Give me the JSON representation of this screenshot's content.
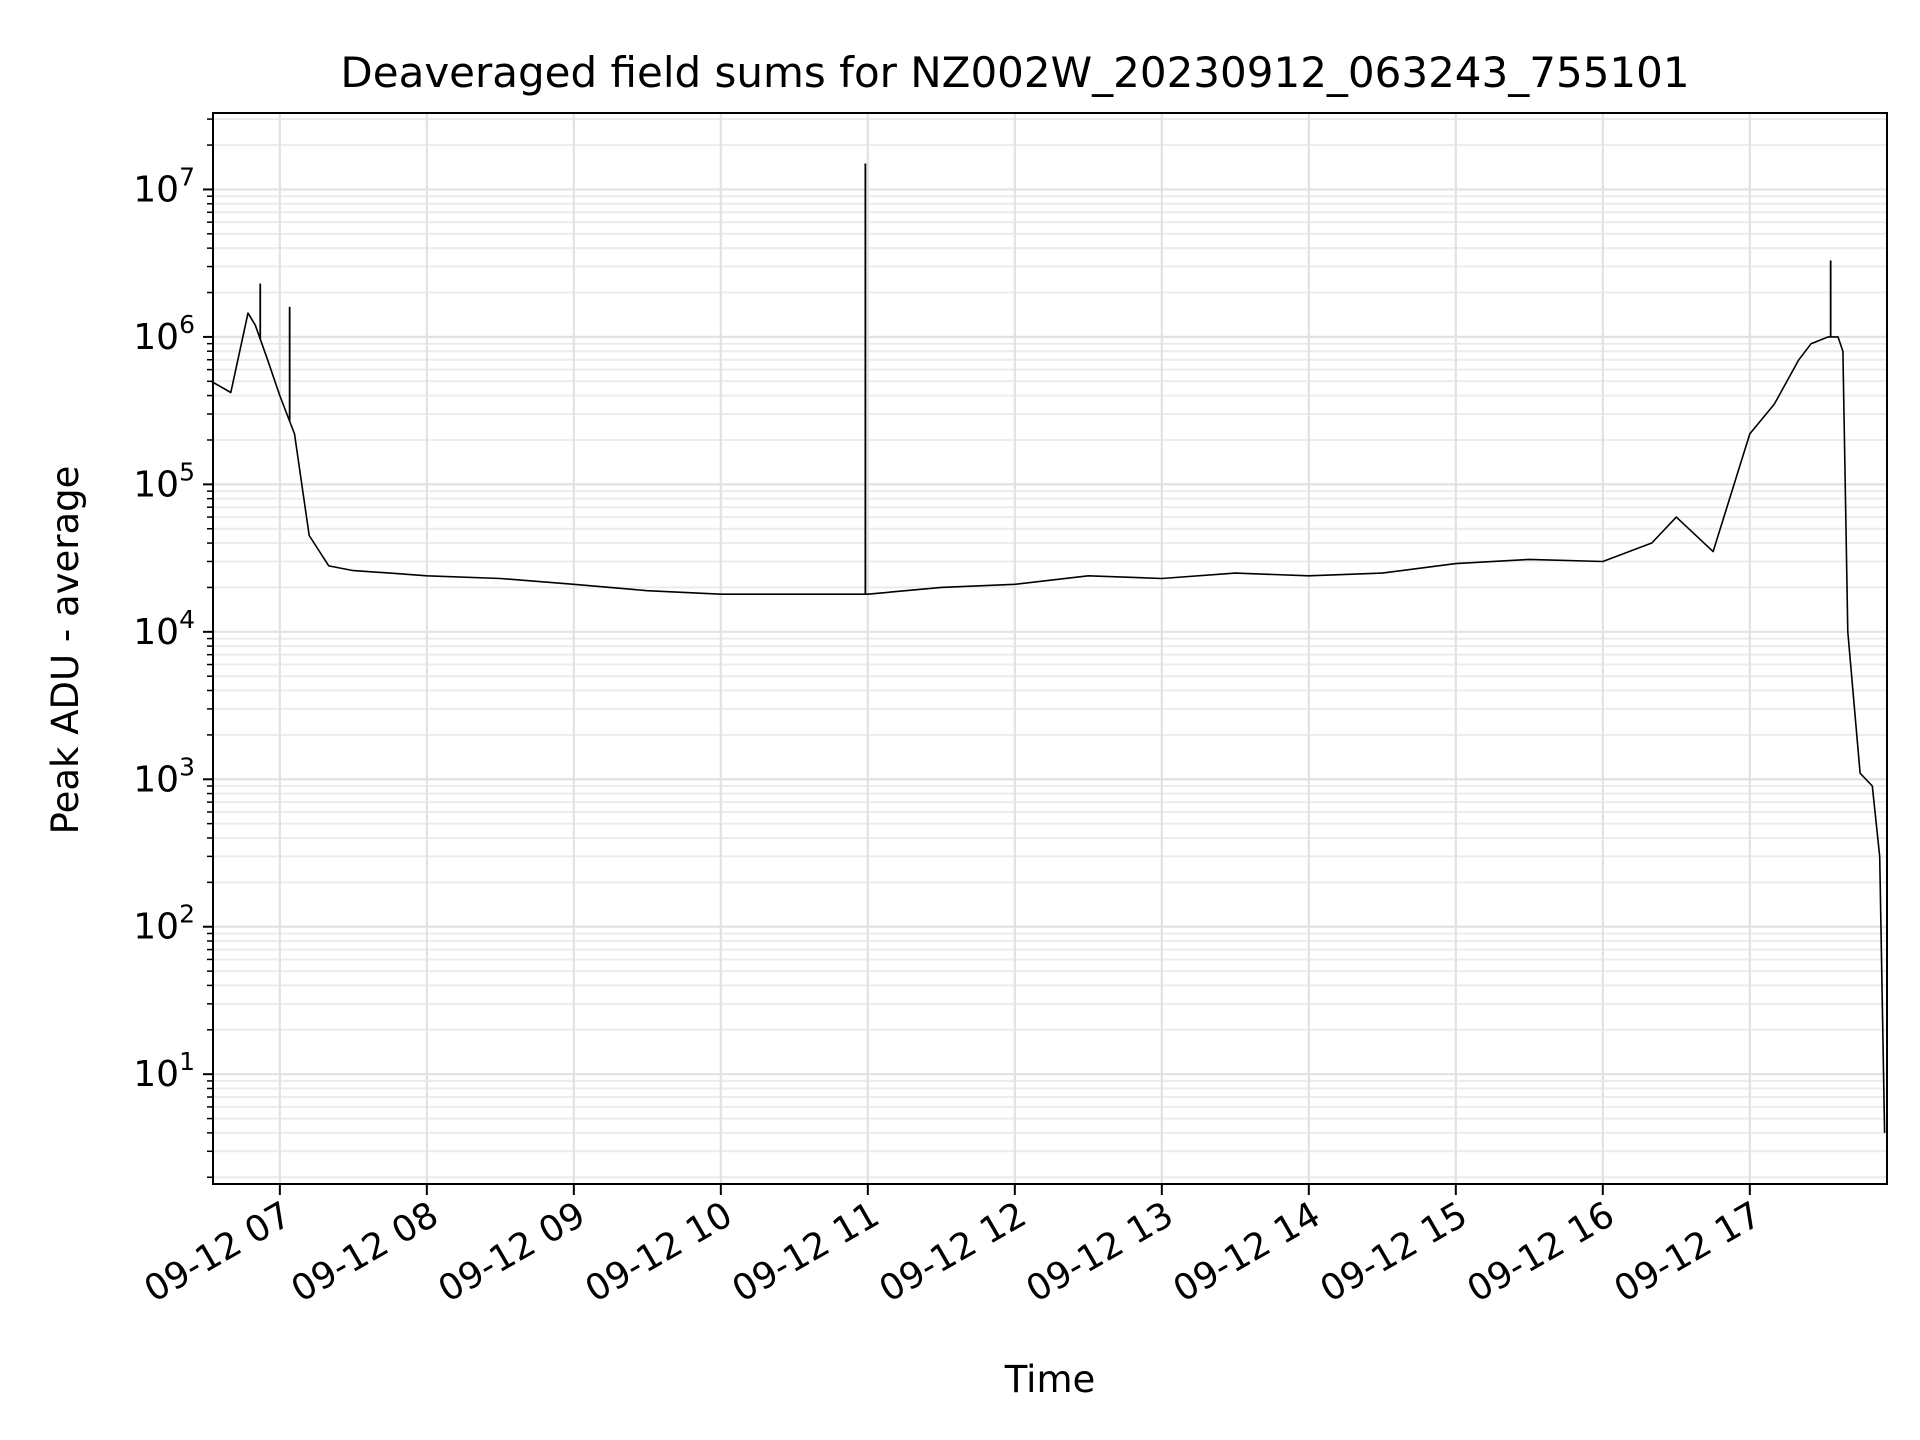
{
  "chart_data": {
    "type": "line",
    "title": "Deaveraged field sums for NZ002W_20230912_063243_755101",
    "xlabel": "Time",
    "ylabel": "Peak ADU - average",
    "y_scale": "log",
    "xlim": [
      "09-12 06:32:43",
      "09-12 17:56"
    ],
    "ylim": [
      1.8,
      33000000
    ],
    "grid": true,
    "color": "#000000",
    "x_ticks": [
      "09-12 07",
      "09-12 08",
      "09-12 09",
      "09-12 10",
      "09-12 11",
      "09-12 12",
      "09-12 13",
      "09-12 14",
      "09-12 15",
      "09-12 16",
      "09-12 17"
    ],
    "y_ticks": [
      {
        "base": "10",
        "exp": "1"
      },
      {
        "base": "10",
        "exp": "2"
      },
      {
        "base": "10",
        "exp": "3"
      },
      {
        "base": "10",
        "exp": "4"
      },
      {
        "base": "10",
        "exp": "5"
      },
      {
        "base": "10",
        "exp": "6"
      },
      {
        "base": "10",
        "exp": "7"
      }
    ],
    "series": [
      {
        "x": [
          "09-12 06:32",
          "09-12 06:40",
          "09-12 06:47",
          "09-12 06:50",
          "09-12 06:55",
          "09-12 07:00",
          "09-12 07:06",
          "09-12 07:12",
          "09-12 07:20",
          "09-12 07:30",
          "09-12 07:45",
          "09-12 08:00",
          "09-12 08:30",
          "09-12 09:00",
          "09-12 09:30",
          "09-12 10:00",
          "09-12 10:30",
          "09-12 11:00",
          "09-12 11:30",
          "09-12 12:00",
          "09-12 12:30",
          "09-12 13:00",
          "09-12 13:30",
          "09-12 14:00",
          "09-12 14:30",
          "09-12 15:00",
          "09-12 15:30",
          "09-12 16:00",
          "09-12 16:20",
          "09-12 16:30",
          "09-12 16:45",
          "09-12 17:00",
          "09-12 17:10",
          "09-12 17:20",
          "09-12 17:25",
          "09-12 17:32",
          "09-12 17:36",
          "09-12 17:38",
          "09-12 17:40",
          "09-12 17:45",
          "09-12 17:50",
          "09-12 17:53",
          "09-12 17:55"
        ],
        "values": [
          500000,
          420000,
          1450000,
          1200000,
          700000,
          400000,
          220000,
          45000,
          28000,
          26000,
          25000,
          24000,
          23000,
          21000,
          19000,
          18000,
          18000,
          18000,
          20000,
          21000,
          24000,
          23000,
          25000,
          24000,
          25000,
          29000,
          31000,
          30000,
          40000,
          60000,
          35000,
          220000,
          350000,
          700000,
          900000,
          1000000,
          1000000,
          800000,
          10000,
          1100,
          900,
          300,
          4
        ],
        "spikes": [
          {
            "x": "09-12 06:52",
            "value": 2300000
          },
          {
            "x": "09-12 07:04",
            "value": 1600000
          },
          {
            "x": "09-12 10:59",
            "value": 15000000
          },
          {
            "x": "09-12 17:33",
            "value": 3300000
          }
        ]
      }
    ]
  }
}
